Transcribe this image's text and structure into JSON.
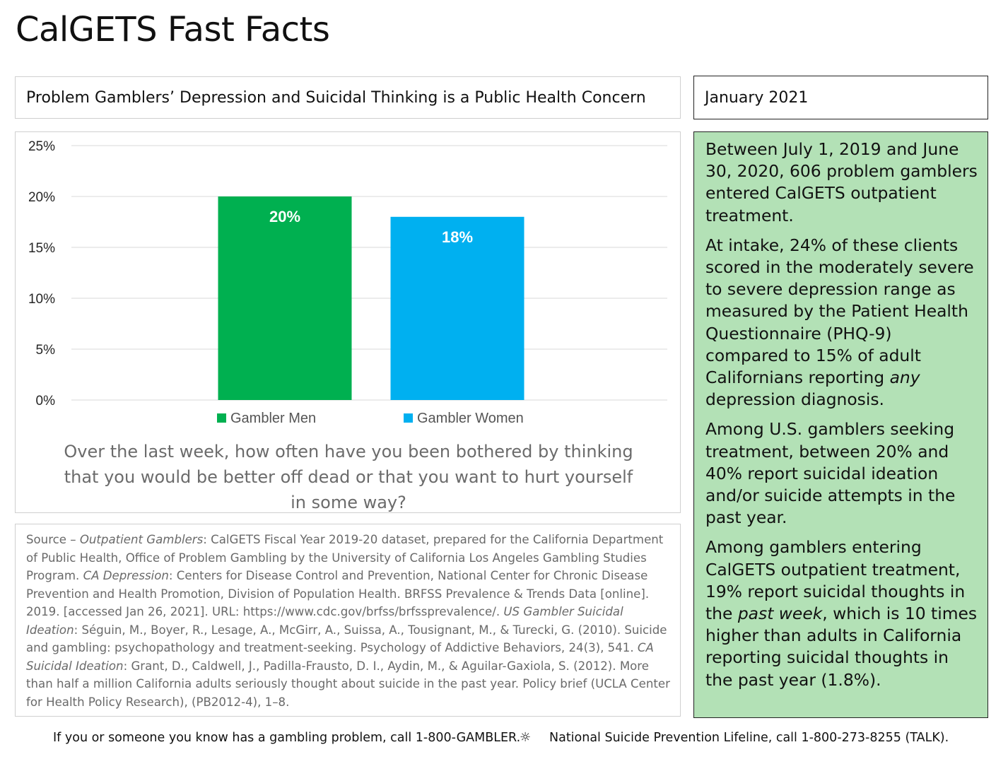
{
  "page": {
    "title": "CalGETS Fast Facts",
    "headline": "Problem Gamblers’ Depression and Suicidal Thinking is a Public Health Concern",
    "date": "January 2021"
  },
  "chart_data": {
    "type": "bar",
    "categories": [
      "Gambler Men",
      "Gambler Women"
    ],
    "values": [
      20,
      18
    ],
    "data_labels": [
      "20%",
      "18%"
    ],
    "colors": [
      "#00b050",
      "#00b0f0"
    ],
    "ylim": [
      0,
      25
    ],
    "y_ticks": [
      0,
      5,
      10,
      15,
      20,
      25
    ],
    "y_tick_labels": [
      "0%",
      "5%",
      "10%",
      "15%",
      "20%",
      "25%"
    ],
    "title": "",
    "xlabel": "",
    "ylabel": "",
    "grid": true,
    "legend_position": "bottom",
    "legend": [
      "Gambler Men",
      "Gambler Women"
    ],
    "caption": "Over the last week, how often have you been bothered by thinking that you would be better off dead or that you want to hurt yourself in some way?"
  },
  "source": {
    "segments": [
      {
        "t": "Source – ",
        "i": false
      },
      {
        "t": "Outpatient Gamblers",
        "i": true
      },
      {
        "t": ": CalGETS Fiscal Year 2019-20 dataset, prepared for the California Department of Public Health, Office of Problem Gambling by the University of California Los Angeles Gambling Studies Program. ",
        "i": false
      },
      {
        "t": "CA Depression",
        "i": true
      },
      {
        "t": ": Centers for Disease Control and Prevention, National Center for Chronic Disease Prevention and Health Promotion, Division of Population Health. BRFSS Prevalence & Trends Data [online]. 2019. [accessed Jan 26, 2021]. URL: https://www.cdc.gov/brfss/brfssprevalence/. ",
        "i": false
      },
      {
        "t": "US Gambler Suicidal Ideation",
        "i": true
      },
      {
        "t": ": Séguin, M., Boyer, R., Lesage, A., McGirr, A., Suissa, A., Tousignant, M., & Turecki, G. (2010). Suicide and gambling: psychopathology and treatment-seeking. Psychology of Addictive Behaviors, 24(3), 541. ",
        "i": false
      },
      {
        "t": "CA Suicidal Ideation",
        "i": true
      },
      {
        "t": ": Grant, D., Caldwell, J., Padilla-Frausto, D. I., Aydin, M., & Aguilar-Gaxiola, S. (2012). More than half a million California adults seriously thought about suicide in the past year. Policy brief (UCLA Center for Health Policy Research), (PB2012-4), 1–8.",
        "i": false
      }
    ]
  },
  "facts": [
    [
      {
        "t": "Between July 1, 2019 and June 30, 2020, 606 problem gamblers entered CalGETS outpatient treatment.",
        "i": false
      }
    ],
    [
      {
        "t": "At intake, 24% of these clients scored in the moderately severe to severe depression range as measured by the Patient Health Questionnaire (PHQ-9) compared to 15% of adult Californians reporting ",
        "i": false
      },
      {
        "t": "any",
        "i": true
      },
      {
        "t": " depression diagnosis.",
        "i": false
      }
    ],
    [
      {
        "t": "Among U.S. gamblers seeking treatment, between 20% and 40% report suicidal ideation and/or suicide attempts in the past year.",
        "i": false
      }
    ],
    [
      {
        "t": "Among gamblers entering CalGETS outpatient treatment, 19% report suicidal thoughts in the ",
        "i": false
      },
      {
        "t": "past week",
        "i": true
      },
      {
        "t": ", which is 10 times higher than adults in California reporting suicidal thoughts in the past year (1.8%).",
        "i": false
      }
    ]
  ],
  "footer": {
    "left": "If you or someone you know has a gambling problem, call 1-800-GAMBLER.",
    "separator": "☼",
    "right": "National Suicide Prevention Lifeline, call 1-800-273-8255 (TALK)."
  }
}
